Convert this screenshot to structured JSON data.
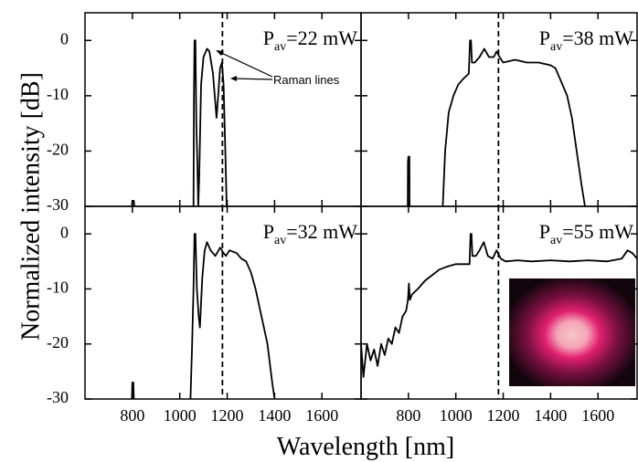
{
  "xlabel": "Wavelength [nm]",
  "ylabel": "Normalized intensity [dB]",
  "chart_data": [
    {
      "type": "line",
      "power_label": [
        "P",
        "av",
        "=22 mW"
      ],
      "annotation": "Raman lines",
      "xlim": [
        600,
        1765
      ],
      "ylim": [
        -30,
        5
      ],
      "xticks": [
        800,
        1000,
        1200,
        1400,
        1600
      ],
      "yticks": [
        0,
        -10,
        -20,
        -30
      ],
      "xtick_labels": false,
      "ytick_labels": true,
      "vline": 1180,
      "series": [
        {
          "color": "#000000",
          "x": [
            798,
            800,
            806,
            808,
            900,
            1058,
            1060,
            1062,
            1066,
            1070,
            1074,
            1078,
            1082,
            1090,
            1100,
            1115,
            1125,
            1140,
            1155,
            1162,
            1170,
            1178,
            1185,
            1192,
            1198
          ],
          "values": [
            -30,
            -29,
            -29,
            -30,
            null,
            -30,
            -10,
            0,
            0,
            -15,
            -22,
            -30,
            -25,
            -8,
            -3,
            -1.5,
            -2,
            -6,
            -14,
            -10,
            -5,
            -4,
            -8,
            -20,
            -30
          ]
        }
      ]
    },
    {
      "type": "line",
      "power_label": [
        "P",
        "av",
        "=38 mW"
      ],
      "xlim": [
        600,
        1765
      ],
      "ylim": [
        -30,
        5
      ],
      "xticks": [
        800,
        1000,
        1200,
        1400,
        1600
      ],
      "yticks": [
        0,
        -10,
        -20,
        -30
      ],
      "xtick_labels": false,
      "ytick_labels": false,
      "vline": 1180,
      "series": [
        {
          "color": "#000000",
          "x": [
            797,
            798,
            800,
            804,
            805,
            900,
            945,
            955,
            970,
            990,
            1010,
            1030,
            1055,
            1060,
            1064,
            1068,
            1080,
            1100,
            1120,
            1140,
            1160,
            1172,
            1185,
            1200,
            1250,
            1300,
            1350,
            1400,
            1420,
            1440,
            1470,
            1490,
            1510,
            1530,
            1545
          ],
          "values": [
            -30,
            -22,
            -21,
            -21,
            -30,
            null,
            -30,
            -20,
            -13,
            -10,
            -8,
            -7,
            -6,
            0,
            0,
            -4,
            -4,
            -3,
            -1.5,
            -3,
            -3,
            -2,
            -3,
            -4,
            -3.5,
            -4,
            -4,
            -4.5,
            -5,
            -7,
            -10,
            -14,
            -20,
            -26,
            -30
          ]
        }
      ]
    },
    {
      "type": "line",
      "power_label": [
        "P",
        "av",
        "=32 mW"
      ],
      "xlim": [
        600,
        1765
      ],
      "ylim": [
        -30,
        5
      ],
      "xticks": [
        800,
        1000,
        1200,
        1400,
        1600
      ],
      "yticks": [
        0,
        -10,
        -20,
        -30
      ],
      "xtick_labels": true,
      "ytick_labels": true,
      "vline": 1180,
      "series": [
        {
          "color": "#000000",
          "x": [
            798,
            800,
            804,
            806,
            900,
            1045,
            1052,
            1058,
            1062,
            1066,
            1072,
            1080,
            1085,
            1095,
            1105,
            1115,
            1130,
            1150,
            1170,
            1185,
            1195,
            1210,
            1240,
            1260,
            1280,
            1300,
            1320,
            1345,
            1370,
            1390,
            1400
          ],
          "values": [
            -30,
            -27,
            -27,
            -30,
            null,
            -30,
            -20,
            -10,
            0,
            0,
            -10,
            -15,
            -17,
            -8,
            -3,
            -1.5,
            -3,
            -4,
            -2.5,
            -3.5,
            -4,
            -3,
            -3.5,
            -4.5,
            -5,
            -7,
            -10,
            -15,
            -20,
            -27,
            -30
          ]
        }
      ]
    },
    {
      "type": "line",
      "power_label": [
        "P",
        "av",
        "=55 mW"
      ],
      "xlim": [
        600,
        1765
      ],
      "ylim": [
        -30,
        5
      ],
      "xticks": [
        800,
        1000,
        1200,
        1400,
        1600
      ],
      "yticks": [
        0,
        -10,
        -20,
        -30
      ],
      "xtick_labels": true,
      "ytick_labels": false,
      "vline": 1180,
      "series": [
        {
          "color": "#000000",
          "x": [
            600,
            610,
            625,
            640,
            655,
            670,
            685,
            700,
            715,
            730,
            745,
            760,
            775,
            790,
            798,
            802,
            806,
            815,
            840,
            870,
            900,
            930,
            960,
            1000,
            1030,
            1058,
            1062,
            1066,
            1070,
            1085,
            1100,
            1118,
            1135,
            1155,
            1172,
            1190,
            1210,
            1260,
            1320,
            1400,
            1480,
            1560,
            1640,
            1700,
            1725,
            1745,
            1765
          ],
          "values": [
            -20,
            -26,
            -20,
            -23,
            -21,
            -24,
            -20,
            -22,
            -19,
            -20,
            -17,
            -18,
            -15,
            -14,
            -12,
            -9,
            -12,
            -11,
            -10,
            -8.5,
            -7.5,
            -6.5,
            -6,
            -5.5,
            -5.5,
            -5.5,
            0,
            0,
            -4,
            -4,
            -3,
            -1.5,
            -4,
            -4.5,
            -3,
            -4.5,
            -5,
            -4.8,
            -5,
            -4.8,
            -5,
            -4.8,
            -5,
            -4.5,
            -3,
            -3.5,
            -4.5
          ]
        }
      ]
    }
  ]
}
